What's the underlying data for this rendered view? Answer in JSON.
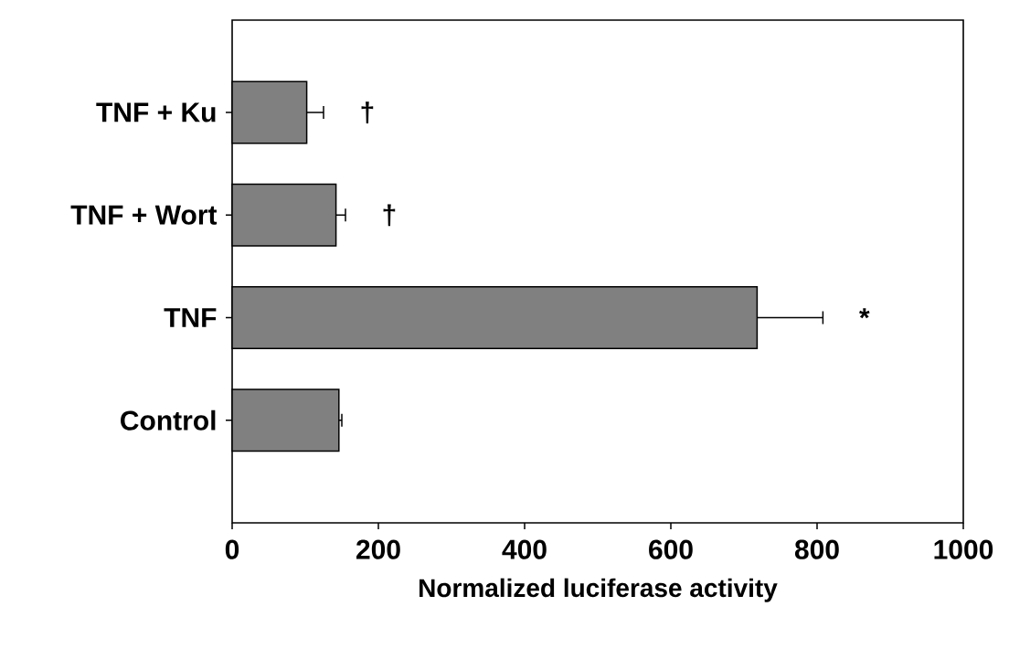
{
  "chart_data": {
    "type": "bar",
    "orientation": "horizontal",
    "xlabel": "Normalized luciferase activity",
    "categories": [
      "TNF + Ku",
      "TNF + Wort",
      "TNF",
      "Control"
    ],
    "values": [
      102,
      142,
      718,
      146
    ],
    "errors": [
      23,
      13,
      90,
      4
    ],
    "color": "#808080",
    "xlim": [
      0,
      1000
    ],
    "xticks": [
      0,
      200,
      400,
      600,
      800,
      1000
    ],
    "annotations": [
      "†",
      "†",
      "*"
    ]
  }
}
